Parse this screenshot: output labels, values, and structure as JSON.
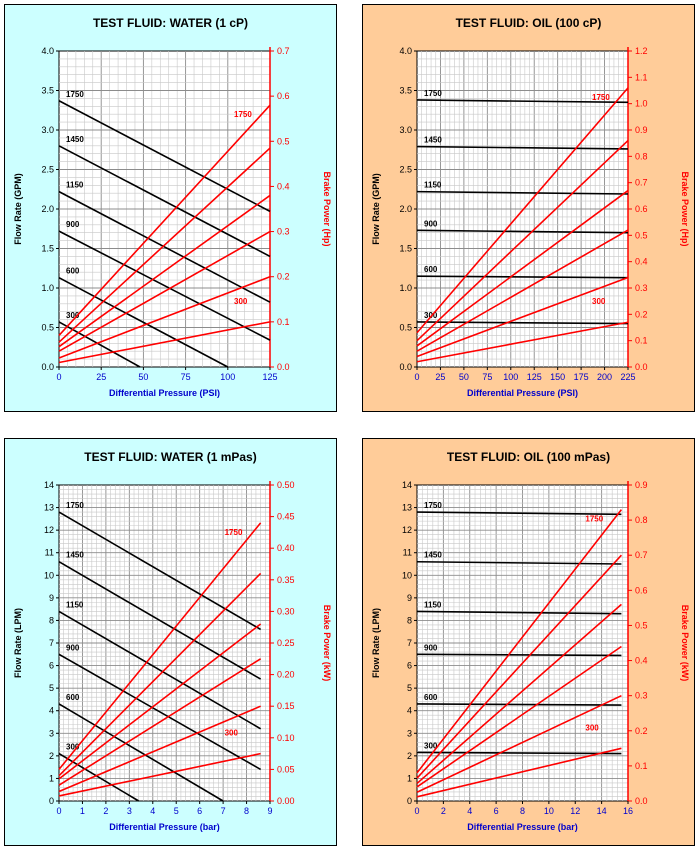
{
  "colors": {
    "cyan_bg": "#ccffff",
    "orange_bg": "#ffcc99",
    "flow": "#000000",
    "power": "#ff0000",
    "xaxis_title": "#0000cc"
  },
  "chart_data": [
    {
      "type": "line",
      "title": "TEST FLUID:  WATER (1 cP)",
      "xlabel": "Differential Pressure (PSI)",
      "ylabel": "Flow Rate (GPM)",
      "y2label": "Brake Power (Hp)",
      "xlim": [
        0,
        125
      ],
      "ylim": [
        0,
        4.0
      ],
      "y2lim": [
        0,
        0.7
      ],
      "xticks": [
        "0",
        "25",
        "50",
        "75",
        "100",
        "125"
      ],
      "yticks": [
        "0.0",
        "0.5",
        "1.0",
        "1.5",
        "2.0",
        "2.5",
        "3.0",
        "3.5",
        "4.0"
      ],
      "y2ticks": [
        "0.0",
        "0.1",
        "0.2",
        "0.3",
        "0.4",
        "0.5",
        "0.6",
        "0.7"
      ],
      "flow_series": [
        {
          "name": "1750",
          "label": "1750",
          "x": [
            0,
            125
          ],
          "y": [
            3.37,
            1.97
          ]
        },
        {
          "name": "1450",
          "label": "1450",
          "x": [
            0,
            125
          ],
          "y": [
            2.8,
            1.4
          ]
        },
        {
          "name": "1150",
          "label": "1150",
          "x": [
            0,
            125
          ],
          "y": [
            2.22,
            0.82
          ]
        },
        {
          "name": "900",
          "label": "900",
          "x": [
            0,
            125
          ],
          "y": [
            1.72,
            0.34
          ]
        },
        {
          "name": "600",
          "label": "600",
          "x": [
            0,
            100
          ],
          "y": [
            1.13,
            0.0
          ]
        },
        {
          "name": "300",
          "label": "300",
          "x": [
            0,
            48
          ],
          "y": [
            0.57,
            0.0
          ]
        }
      ],
      "power_series": [
        {
          "name": "1750",
          "label": "1750",
          "x": [
            0,
            125
          ],
          "y": [
            0.07,
            0.58
          ]
        },
        {
          "name": "1450",
          "x": [
            0,
            125
          ],
          "y": [
            0.055,
            0.485
          ]
        },
        {
          "name": "1150",
          "x": [
            0,
            125
          ],
          "y": [
            0.045,
            0.38
          ]
        },
        {
          "name": "900",
          "x": [
            0,
            125
          ],
          "y": [
            0.035,
            0.3
          ]
        },
        {
          "name": "600",
          "x": [
            0,
            125
          ],
          "y": [
            0.02,
            0.2
          ]
        },
        {
          "name": "300",
          "label": "300",
          "x": [
            0,
            125
          ],
          "y": [
            0.01,
            0.1
          ]
        }
      ]
    },
    {
      "type": "line",
      "title": "TEST FLUID:  OIL (100 cP)",
      "xlabel": "Differential Pressure (PSI)",
      "ylabel": "Flow Rate (GPM)",
      "y2label": "Brake Power (Hp)",
      "xlim": [
        0,
        225
      ],
      "ylim": [
        0,
        4.0
      ],
      "y2lim": [
        0,
        1.2
      ],
      "xticks": [
        "0",
        "25",
        "50",
        "75",
        "100",
        "125",
        "150",
        "175",
        "200",
        "225"
      ],
      "yticks": [
        "0.0",
        "0.5",
        "1.0",
        "1.5",
        "2.0",
        "2.5",
        "3.0",
        "3.5",
        "4.0"
      ],
      "y2ticks": [
        "0.0",
        "0.1",
        "0.2",
        "0.3",
        "0.4",
        "0.5",
        "0.6",
        "0.7",
        "0.8",
        "0.9",
        "1.0",
        "1.1",
        "1.2"
      ],
      "flow_series": [
        {
          "name": "1750",
          "label": "1750",
          "x": [
            0,
            225
          ],
          "y": [
            3.38,
            3.35
          ]
        },
        {
          "name": "1450",
          "label": "1450",
          "x": [
            0,
            225
          ],
          "y": [
            2.79,
            2.76
          ]
        },
        {
          "name": "1150",
          "label": "1150",
          "x": [
            0,
            225
          ],
          "y": [
            2.22,
            2.19
          ]
        },
        {
          "name": "900",
          "label": "900",
          "x": [
            0,
            225
          ],
          "y": [
            1.73,
            1.7
          ]
        },
        {
          "name": "600",
          "label": "600",
          "x": [
            0,
            225
          ],
          "y": [
            1.15,
            1.13
          ]
        },
        {
          "name": "300",
          "label": "300",
          "x": [
            0,
            225
          ],
          "y": [
            0.57,
            0.55
          ]
        }
      ],
      "power_series": [
        {
          "name": "1750",
          "label": "1750",
          "x": [
            0,
            225
          ],
          "y": [
            0.13,
            1.06
          ]
        },
        {
          "name": "1450",
          "x": [
            0,
            225
          ],
          "y": [
            0.1,
            0.86
          ]
        },
        {
          "name": "1150",
          "x": [
            0,
            225
          ],
          "y": [
            0.08,
            0.67
          ]
        },
        {
          "name": "900",
          "x": [
            0,
            225
          ],
          "y": [
            0.06,
            0.52
          ]
        },
        {
          "name": "600",
          "x": [
            0,
            225
          ],
          "y": [
            0.04,
            0.34
          ]
        },
        {
          "name": "300",
          "label": "300",
          "x": [
            0,
            225
          ],
          "y": [
            0.02,
            0.17
          ]
        }
      ]
    },
    {
      "type": "line",
      "title": "TEST FLUID:  WATER (1 mPas)",
      "xlabel": "Differential Pressure (bar)",
      "ylabel": "Flow Rate (LPM)",
      "y2label": "Brake Power (kW)",
      "xlim": [
        0,
        9
      ],
      "ylim": [
        0,
        14
      ],
      "y2lim": [
        0,
        0.5
      ],
      "xticks": [
        "0",
        "1",
        "2",
        "3",
        "4",
        "5",
        "6",
        "7",
        "8",
        "9"
      ],
      "yticks": [
        "0",
        "1",
        "2",
        "3",
        "4",
        "5",
        "6",
        "7",
        "8",
        "9",
        "10",
        "11",
        "12",
        "13",
        "14"
      ],
      "y2ticks": [
        "0.00",
        "0.05",
        "0.10",
        "0.15",
        "0.20",
        "0.25",
        "0.30",
        "0.35",
        "0.40",
        "0.45",
        "0.50"
      ],
      "flow_series": [
        {
          "name": "1750",
          "label": "1750",
          "x": [
            0,
            8.6
          ],
          "y": [
            12.8,
            7.6
          ]
        },
        {
          "name": "1450",
          "label": "1450",
          "x": [
            0,
            8.6
          ],
          "y": [
            10.6,
            5.4
          ]
        },
        {
          "name": "1150",
          "label": "1150",
          "x": [
            0,
            8.6
          ],
          "y": [
            8.4,
            3.2
          ]
        },
        {
          "name": "900",
          "label": "900",
          "x": [
            0,
            8.6
          ],
          "y": [
            6.5,
            1.4
          ]
        },
        {
          "name": "600",
          "label": "600",
          "x": [
            0,
            7.0
          ],
          "y": [
            4.3,
            0.0
          ]
        },
        {
          "name": "300",
          "label": "300",
          "x": [
            0,
            3.4
          ],
          "y": [
            2.1,
            0.0
          ]
        }
      ],
      "power_series": [
        {
          "name": "1750",
          "label": "1750",
          "x": [
            0,
            8.6
          ],
          "y": [
            0.05,
            0.44
          ]
        },
        {
          "name": "1450",
          "x": [
            0,
            8.6
          ],
          "y": [
            0.04,
            0.36
          ]
        },
        {
          "name": "1150",
          "x": [
            0,
            8.6
          ],
          "y": [
            0.035,
            0.28
          ]
        },
        {
          "name": "900",
          "x": [
            0,
            8.6
          ],
          "y": [
            0.025,
            0.225
          ]
        },
        {
          "name": "600",
          "x": [
            0,
            8.6
          ],
          "y": [
            0.015,
            0.15
          ]
        },
        {
          "name": "300",
          "label": "300",
          "x": [
            0,
            8.6
          ],
          "y": [
            0.008,
            0.075
          ]
        }
      ]
    },
    {
      "type": "line",
      "title": "TEST FLUID:  OIL (100 mPas)",
      "xlabel": "Differential Pressure (bar)",
      "ylabel": "Flow Rate (LPM)",
      "y2label": "Brake Power (kW)",
      "xlim": [
        0,
        16
      ],
      "ylim": [
        0,
        14
      ],
      "y2lim": [
        0,
        0.9
      ],
      "xticks": [
        "0",
        "2",
        "4",
        "6",
        "8",
        "10",
        "12",
        "14",
        "16"
      ],
      "yticks": [
        "0",
        "1",
        "2",
        "3",
        "4",
        "5",
        "6",
        "7",
        "8",
        "9",
        "10",
        "11",
        "12",
        "13",
        "14"
      ],
      "y2ticks": [
        "0.0",
        "0.1",
        "0.2",
        "0.3",
        "0.4",
        "0.5",
        "0.6",
        "0.7",
        "0.8",
        "0.9"
      ],
      "flow_series": [
        {
          "name": "1750",
          "label": "1750",
          "x": [
            0,
            15.5
          ],
          "y": [
            12.8,
            12.7
          ]
        },
        {
          "name": "1450",
          "label": "1450",
          "x": [
            0,
            15.5
          ],
          "y": [
            10.6,
            10.5
          ]
        },
        {
          "name": "1150",
          "label": "1150",
          "x": [
            0,
            15.5
          ],
          "y": [
            8.4,
            8.3
          ]
        },
        {
          "name": "900",
          "label": "900",
          "x": [
            0,
            15.5
          ],
          "y": [
            6.5,
            6.45
          ]
        },
        {
          "name": "600",
          "label": "600",
          "x": [
            0,
            15.5
          ],
          "y": [
            4.3,
            4.25
          ]
        },
        {
          "name": "300",
          "label": "300",
          "x": [
            0,
            15.5
          ],
          "y": [
            2.15,
            2.1
          ]
        }
      ],
      "power_series": [
        {
          "name": "1750",
          "label": "1750",
          "x": [
            0,
            15.5
          ],
          "y": [
            0.08,
            0.83
          ]
        },
        {
          "name": "1450",
          "x": [
            0,
            15.5
          ],
          "y": [
            0.065,
            0.7
          ]
        },
        {
          "name": "1150",
          "x": [
            0,
            15.5
          ],
          "y": [
            0.05,
            0.56
          ]
        },
        {
          "name": "900",
          "x": [
            0,
            15.5
          ],
          "y": [
            0.04,
            0.44
          ]
        },
        {
          "name": "600",
          "x": [
            0,
            15.5
          ],
          "y": [
            0.025,
            0.3
          ]
        },
        {
          "name": "300",
          "label": "300",
          "x": [
            0,
            15.5
          ],
          "y": [
            0.012,
            0.15
          ]
        }
      ]
    }
  ]
}
